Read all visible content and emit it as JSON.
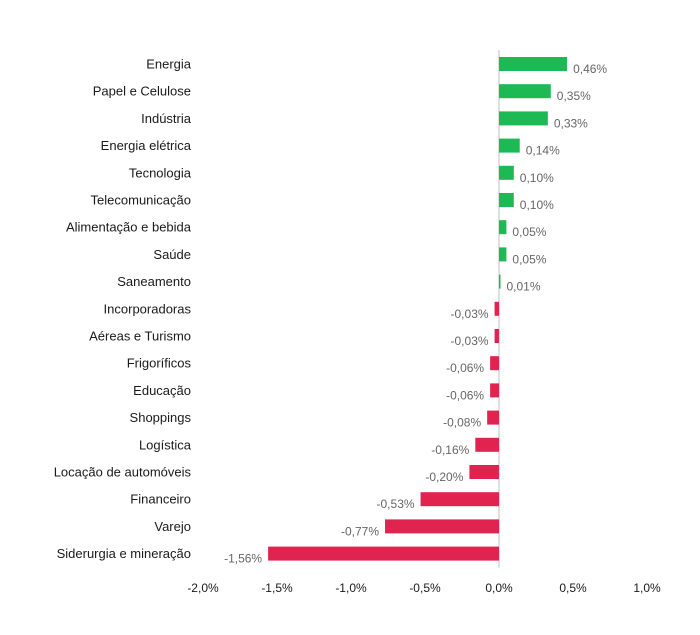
{
  "chart_data": {
    "type": "bar",
    "orientation": "horizontal",
    "title": "",
    "xlabel": "",
    "ylabel": "",
    "xlim": [
      -2.0,
      1.0
    ],
    "grid": false,
    "legend": "none",
    "categories": [
      "Energia",
      "Papel e Celulose",
      "Indústria",
      "Energia elétrica",
      "Tecnologia",
      "Telecomunicação",
      "Alimentação e bebida",
      "Saúde",
      "Saneamento",
      "Incorporadoras",
      "Aéreas e Turismo",
      "Frigoríficos",
      "Educação",
      "Shoppings",
      "Logística",
      "Locação de automóveis",
      "Financeiro",
      "Varejo",
      "Siderurgia e mineração"
    ],
    "values": [
      0.46,
      0.35,
      0.33,
      0.14,
      0.1,
      0.1,
      0.05,
      0.05,
      0.01,
      -0.03,
      -0.03,
      -0.06,
      -0.06,
      -0.08,
      -0.16,
      -0.2,
      -0.53,
      -0.77,
      -1.56
    ],
    "data_labels": [
      "0,46%",
      "0,35%",
      "0,33%",
      "0,14%",
      "0,10%",
      "0,10%",
      "0,05%",
      "0,05%",
      "0,01%",
      "-0,03%",
      "-0,03%",
      "-0,06%",
      "-0,06%",
      "-0,08%",
      "-0,16%",
      "-0,20%",
      "-0,53%",
      "-0,77%",
      "-1,56%"
    ],
    "x_ticks": [
      -2.0,
      -1.5,
      -1.0,
      -0.5,
      0.0,
      0.5,
      1.0
    ],
    "x_tick_labels": [
      "-2,0%",
      "-1,5%",
      "-1,0%",
      "-0,5%",
      "0,0%",
      "0,5%",
      "1,0%"
    ],
    "colors": {
      "positive": "#1db954",
      "negative": "#e0244f",
      "zero_line": "#bfbfbf"
    }
  }
}
